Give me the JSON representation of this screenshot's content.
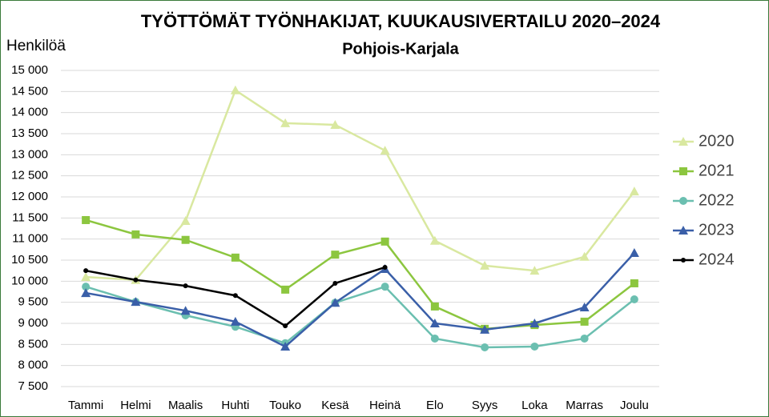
{
  "chart_data": {
    "type": "line",
    "title": "TYÖTTÖMÄT TYÖNHAKIJAT, KUUKAUSIVERTAILU 2020–2024",
    "subtitle": "Pohjois-Karjala",
    "y_label": "Henkilöä",
    "categories": [
      "Tammi",
      "Helmi",
      "Maalis",
      "Huhti",
      "Touko",
      "Kesä",
      "Heinä",
      "Elo",
      "Syys",
      "Loka",
      "Marras",
      "Joulu"
    ],
    "series": [
      {
        "name": "2020",
        "color": "#d9e8a0",
        "marker": "triangle",
        "values": [
          10100,
          10030,
          11430,
          14530,
          13750,
          13710,
          13100,
          10960,
          10370,
          10250,
          10580,
          12130
        ]
      },
      {
        "name": "2021",
        "color": "#8cc63f",
        "marker": "square",
        "values": [
          11450,
          11110,
          10980,
          10560,
          9800,
          10630,
          10940,
          9400,
          8870,
          8960,
          9040,
          9950
        ]
      },
      {
        "name": "2022",
        "color": "#6bbfb0",
        "marker": "circle",
        "values": [
          9870,
          9510,
          9190,
          8920,
          8530,
          9490,
          9870,
          8640,
          8430,
          8450,
          8640,
          9570
        ]
      },
      {
        "name": "2023",
        "color": "#3a5fa8",
        "marker": "triangle",
        "values": [
          9720,
          9510,
          9300,
          9040,
          8450,
          9490,
          10290,
          9000,
          8850,
          9000,
          9380,
          10670
        ]
      },
      {
        "name": "2024",
        "color": "#000000",
        "marker": "dot",
        "values": [
          10250,
          10030,
          9890,
          9660,
          8940,
          9950,
          10330,
          null,
          null,
          null,
          null,
          null
        ]
      }
    ],
    "ylim": [
      7500,
      15000
    ],
    "yticks": [
      {
        "value": 7500,
        "label": "7 500"
      },
      {
        "value": 8000,
        "label": "8 000"
      },
      {
        "value": 8500,
        "label": "8 500"
      },
      {
        "value": 9000,
        "label": "9 000"
      },
      {
        "value": 9500,
        "label": "9 500"
      },
      {
        "value": 10000,
        "label": "10 000"
      },
      {
        "value": 10500,
        "label": "10 500"
      },
      {
        "value": 11000,
        "label": "11 000"
      },
      {
        "value": 11500,
        "label": "11 500"
      },
      {
        "value": 12000,
        "label": "12 000"
      },
      {
        "value": 12500,
        "label": "12 500"
      },
      {
        "value": 13000,
        "label": "13 000"
      },
      {
        "value": 13500,
        "label": "13 500"
      },
      {
        "value": 14000,
        "label": "14 000"
      },
      {
        "value": 14500,
        "label": "14 500"
      },
      {
        "value": 15000,
        "label": "15 000"
      }
    ],
    "grid": true,
    "legend": "right"
  }
}
